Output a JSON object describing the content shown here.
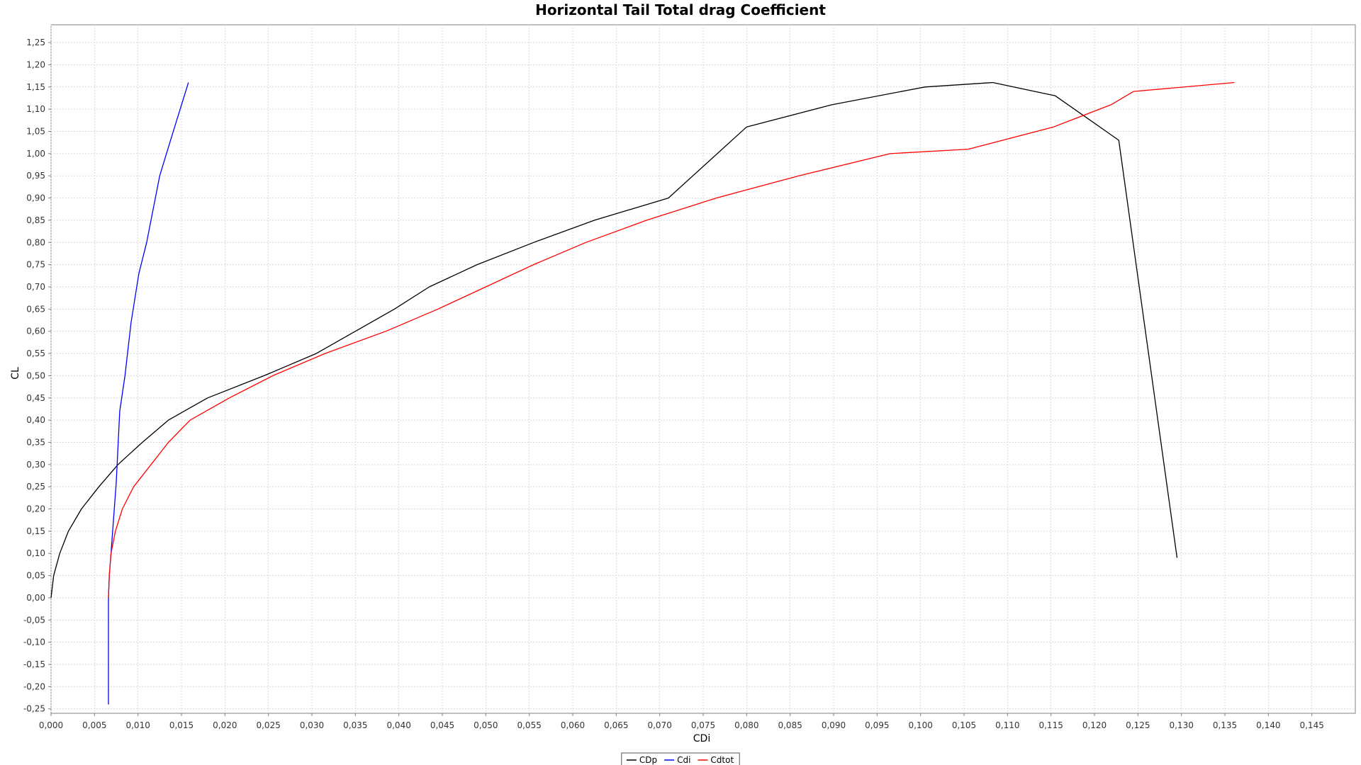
{
  "chart_data": {
    "type": "line",
    "title": "Horizontal Tail Total drag Coefficient",
    "xlabel": "CDi",
    "ylabel": "CL",
    "xlim": [
      0.0,
      0.15
    ],
    "ylim": [
      -0.26,
      1.29
    ],
    "grid": true,
    "legend_position": "bottom-center",
    "x_ticks": [
      "0,000",
      "0,005",
      "0,010",
      "0,015",
      "0,020",
      "0,025",
      "0,030",
      "0,035",
      "0,040",
      "0,045",
      "0,050",
      "0,055",
      "0,060",
      "0,065",
      "0,070",
      "0,075",
      "0,080",
      "0,085",
      "0,090",
      "0,095",
      "0,100",
      "0,105",
      "0,110",
      "0,115",
      "0,120",
      "0,125",
      "0,130",
      "0,135",
      "0,140",
      "0,145"
    ],
    "y_ticks": [
      "-0,25",
      "-0,20",
      "-0,15",
      "-0,10",
      "-0,05",
      "0,00",
      "0,05",
      "0,10",
      "0,15",
      "0,20",
      "0,25",
      "0,30",
      "0,35",
      "0,40",
      "0,45",
      "0,50",
      "0,55",
      "0,60",
      "0,65",
      "0,70",
      "0,75",
      "0,80",
      "0,85",
      "0,90",
      "0,95",
      "1,00",
      "1,05",
      "1,10",
      "1,15",
      "1,20",
      "1,25"
    ],
    "series": [
      {
        "name": "CDp",
        "color": "#000000",
        "x": [
          0.0,
          0.0003,
          0.001,
          0.002,
          0.0035,
          0.0055,
          0.0077,
          0.0105,
          0.0135,
          0.018,
          0.0245,
          0.0305,
          0.035,
          0.0395,
          0.0435,
          0.049,
          0.0555,
          0.0625,
          0.071,
          0.08,
          0.0898,
          0.1005,
          0.1083,
          0.1155,
          0.1228,
          0.1295
        ],
        "y": [
          0.0,
          0.05,
          0.1,
          0.15,
          0.2,
          0.25,
          0.3,
          0.35,
          0.4,
          0.45,
          0.5,
          0.55,
          0.6,
          0.65,
          0.7,
          0.75,
          0.8,
          0.85,
          0.9,
          1.06,
          1.11,
          1.15,
          1.16,
          1.13,
          1.03,
          0.09
        ]
      },
      {
        "name": "Cdi",
        "color": "#0000ff",
        "x": [
          0.0066,
          0.0066,
          0.0066,
          0.0067,
          0.0069,
          0.0072,
          0.0075,
          0.0079,
          0.0085,
          0.0092,
          0.0101,
          0.011,
          0.0125,
          0.0139,
          0.0158
        ],
        "y": [
          -0.24,
          -0.15,
          0.0,
          0.05,
          0.1,
          0.18,
          0.26,
          0.42,
          0.5,
          0.62,
          0.73,
          0.8,
          0.95,
          1.04,
          1.16
        ]
      },
      {
        "name": "Cdtot",
        "color": "#ff0000",
        "x": [
          0.0066,
          0.0067,
          0.0069,
          0.0074,
          0.0082,
          0.0095,
          0.0115,
          0.0135,
          0.016,
          0.0205,
          0.0255,
          0.0315,
          0.0385,
          0.0445,
          0.05,
          0.0555,
          0.0615,
          0.0685,
          0.0765,
          0.086,
          0.0965,
          0.1055,
          0.1153,
          0.1219,
          0.1245,
          0.1361
        ],
        "y": [
          0.0,
          0.05,
          0.1,
          0.15,
          0.2,
          0.25,
          0.3,
          0.35,
          0.4,
          0.45,
          0.5,
          0.55,
          0.6,
          0.65,
          0.7,
          0.75,
          0.8,
          0.85,
          0.9,
          0.95,
          1.0,
          1.01,
          1.06,
          1.11,
          1.14,
          1.16
        ]
      }
    ]
  }
}
